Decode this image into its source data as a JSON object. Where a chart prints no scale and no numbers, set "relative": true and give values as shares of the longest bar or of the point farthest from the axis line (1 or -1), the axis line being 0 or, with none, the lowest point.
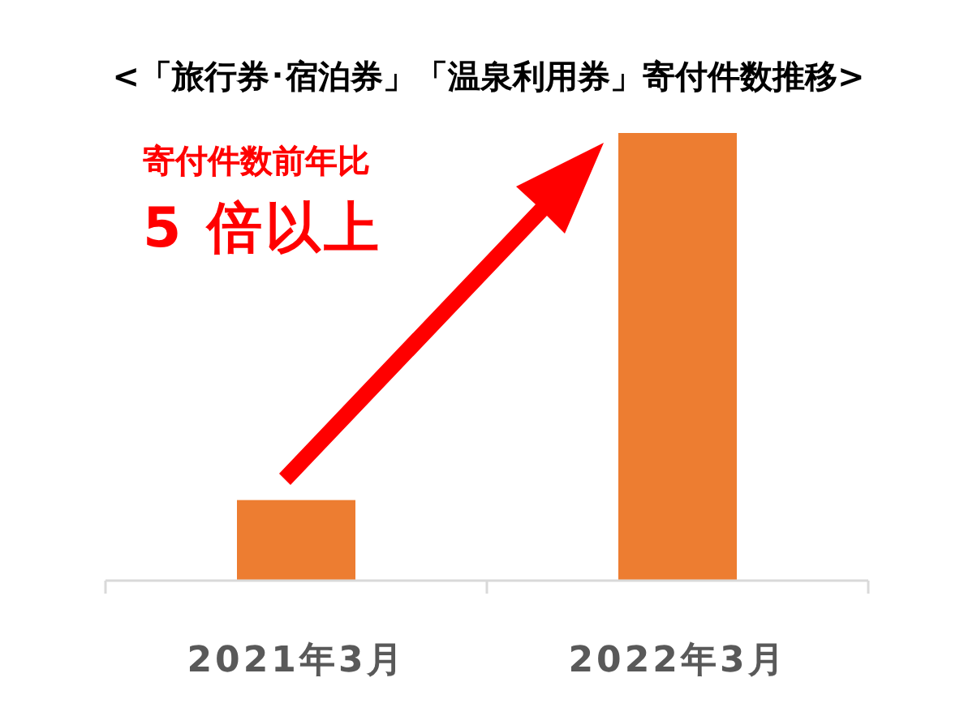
{
  "chart_data": {
    "type": "bar",
    "title": "<「旅行券･宿泊券」「温泉利用券」寄付件数推移>",
    "categories": [
      "2021年3月",
      "2022年3月"
    ],
    "values": [
      0.18,
      1
    ],
    "color": "#ed7d31",
    "relative": true,
    "annotations": [
      "寄付件数前年比",
      "5 倍以上"
    ]
  }
}
